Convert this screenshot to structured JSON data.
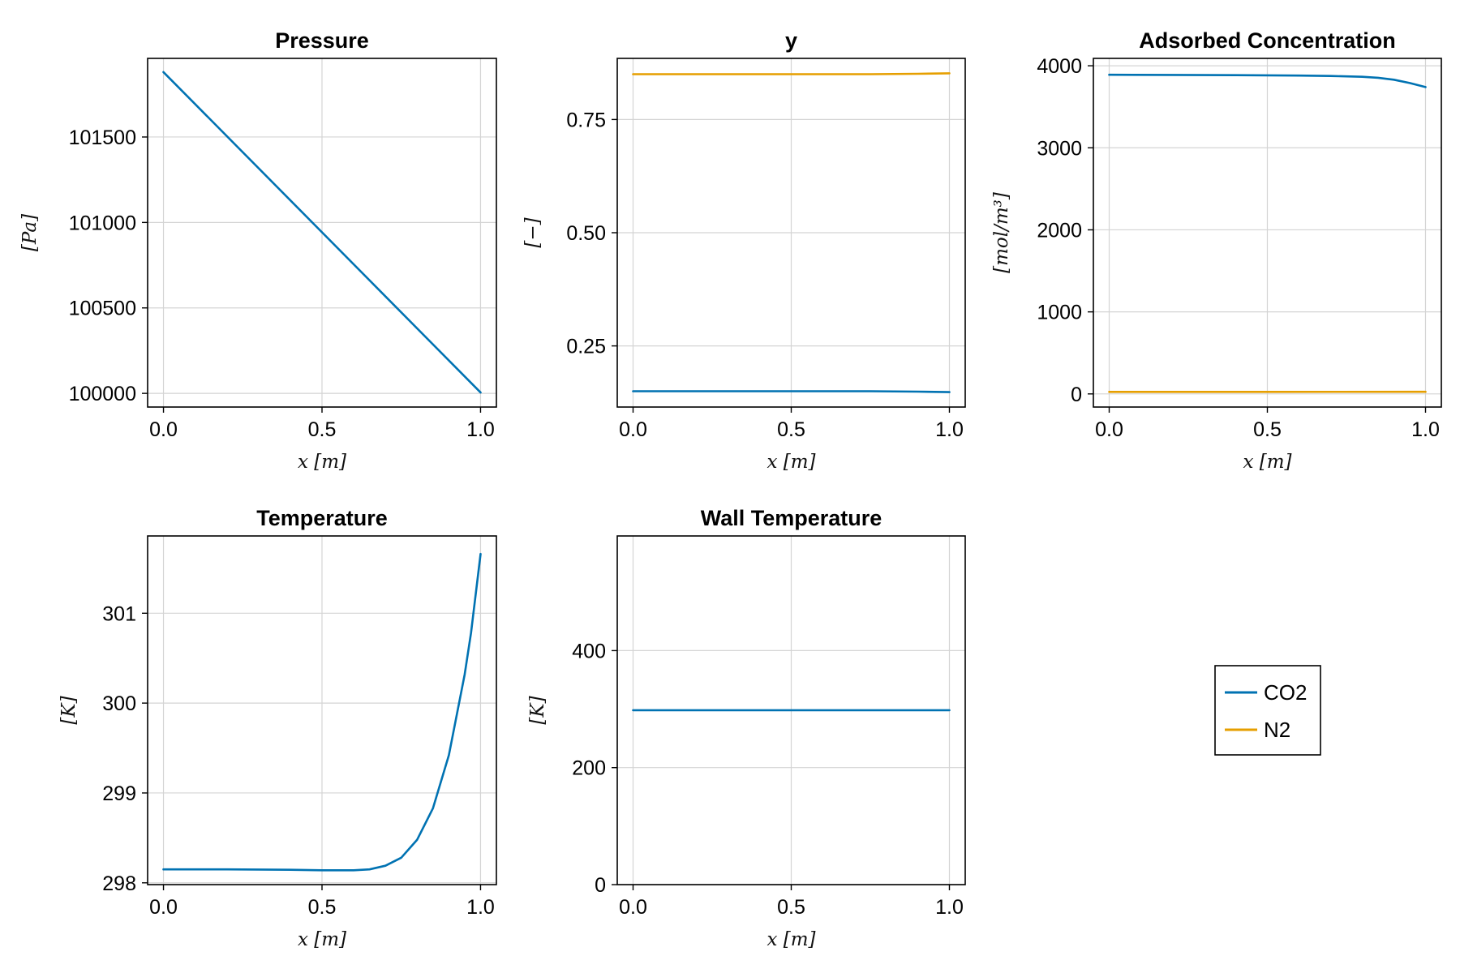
{
  "colors": {
    "CO2": "#0072b2",
    "N2": "#e69f00"
  },
  "legend": {
    "items": [
      {
        "name": "CO2",
        "color": "#0072b2"
      },
      {
        "name": "N2",
        "color": "#e69f00"
      }
    ]
  },
  "chart_data": [
    {
      "id": "pressure",
      "type": "line",
      "title": "Pressure",
      "xlabel": "x [m]",
      "ylabel": "[Pa]",
      "xlim": [
        -0.05,
        1.05
      ],
      "ylim": [
        99920,
        101960
      ],
      "xticks": [
        0.0,
        0.5,
        1.0
      ],
      "xtick_labels": [
        "0.0",
        "0.5",
        "1.0"
      ],
      "yticks": [
        100000,
        100500,
        101000,
        101500
      ],
      "ytick_labels": [
        "100000",
        "100500",
        "101000",
        "101500"
      ],
      "series": [
        {
          "name": "CO2",
          "color": "#0072b2",
          "x": [
            0,
            1
          ],
          "y": [
            101880,
            100005
          ]
        }
      ]
    },
    {
      "id": "y",
      "type": "line",
      "title": "y",
      "xlabel": "x [m]",
      "ylabel": "[−]",
      "xlim": [
        -0.05,
        1.05
      ],
      "ylim": [
        0.115,
        0.885
      ],
      "xticks": [
        0.0,
        0.5,
        1.0
      ],
      "xtick_labels": [
        "0.0",
        "0.5",
        "1.0"
      ],
      "yticks": [
        0.25,
        0.5,
        0.75
      ],
      "ytick_labels": [
        "0.25",
        "0.50",
        "0.75"
      ],
      "series": [
        {
          "name": "N2",
          "color": "#e69f00",
          "x": [
            0,
            0.25,
            0.5,
            0.75,
            0.9,
            1.0
          ],
          "y": [
            0.85,
            0.85,
            0.85,
            0.85,
            0.851,
            0.852
          ]
        },
        {
          "name": "CO2",
          "color": "#0072b2",
          "x": [
            0,
            0.25,
            0.5,
            0.75,
            0.9,
            1.0
          ],
          "y": [
            0.15,
            0.15,
            0.15,
            0.15,
            0.149,
            0.148
          ]
        }
      ]
    },
    {
      "id": "adsorbed",
      "type": "line",
      "title": "Adsorbed Concentration",
      "xlabel": "x [m]",
      "ylabel": "[mol/m³]",
      "xlim": [
        -0.05,
        1.05
      ],
      "ylim": [
        -160,
        4090
      ],
      "xticks": [
        0.0,
        0.5,
        1.0
      ],
      "xtick_labels": [
        "0.0",
        "0.5",
        "1.0"
      ],
      "yticks": [
        0,
        1000,
        2000,
        3000,
        4000
      ],
      "ytick_labels": [
        "0",
        "1000",
        "2000",
        "3000",
        "4000"
      ],
      "series": [
        {
          "name": "CO2",
          "color": "#0072b2",
          "x": [
            0,
            0.2,
            0.4,
            0.6,
            0.7,
            0.8,
            0.85,
            0.9,
            0.95,
            1.0
          ],
          "y": [
            3890,
            3888,
            3885,
            3880,
            3876,
            3866,
            3854,
            3830,
            3790,
            3740
          ]
        },
        {
          "name": "N2",
          "color": "#e69f00",
          "x": [
            0,
            0.5,
            1.0
          ],
          "y": [
            25,
            25,
            26
          ]
        }
      ]
    },
    {
      "id": "temperature",
      "type": "line",
      "title": "Temperature",
      "xlabel": "x [m]",
      "ylabel": "[K]",
      "xlim": [
        -0.05,
        1.05
      ],
      "ylim": [
        297.98,
        301.86
      ],
      "xticks": [
        0.0,
        0.5,
        1.0
      ],
      "xtick_labels": [
        "0.0",
        "0.5",
        "1.0"
      ],
      "yticks": [
        298,
        299,
        300,
        301
      ],
      "ytick_labels": [
        "298",
        "299",
        "300",
        "301"
      ],
      "series": [
        {
          "name": "CO2",
          "color": "#0072b2",
          "x": [
            0,
            0.2,
            0.4,
            0.5,
            0.6,
            0.65,
            0.7,
            0.75,
            0.8,
            0.85,
            0.9,
            0.95,
            0.97,
            1.0
          ],
          "y": [
            298.15,
            298.15,
            298.145,
            298.14,
            298.14,
            298.15,
            298.19,
            298.28,
            298.48,
            298.83,
            299.42,
            300.32,
            300.78,
            301.66
          ]
        }
      ]
    },
    {
      "id": "wall_temperature",
      "type": "line",
      "title": "Wall Temperature",
      "xlabel": "x [m]",
      "ylabel": "[K]",
      "xlim": [
        -0.05,
        1.05
      ],
      "ylim": [
        0,
        596
      ],
      "xticks": [
        0.0,
        0.5,
        1.0
      ],
      "xtick_labels": [
        "0.0",
        "0.5",
        "1.0"
      ],
      "yticks": [
        0,
        200,
        400
      ],
      "ytick_labels": [
        "0",
        "200",
        "400"
      ],
      "series": [
        {
          "name": "CO2",
          "color": "#0072b2",
          "x": [
            0,
            1
          ],
          "y": [
            298.15,
            298.15
          ]
        }
      ]
    }
  ]
}
